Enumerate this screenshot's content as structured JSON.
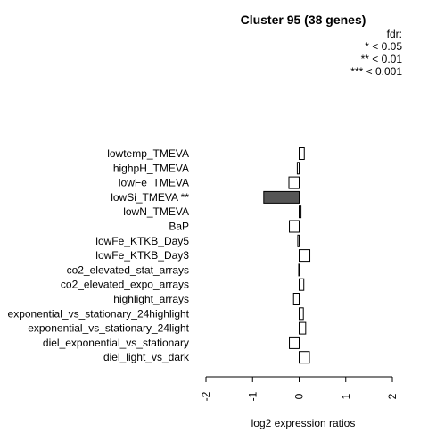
{
  "chart_data": {
    "type": "bar",
    "orientation": "horizontal",
    "title": "Cluster 95 (38 genes)",
    "legend": {
      "heading": "fdr:",
      "entries": [
        "* < 0.05",
        "** < 0.01",
        "*** < 0.001"
      ],
      "placement": "top-right"
    },
    "xlabel": "log2 expression ratios",
    "xlim": [
      -2,
      2
    ],
    "xticks": [
      "-2",
      "-1",
      "0",
      "1",
      "2"
    ],
    "categories": [
      "lowtemp_TMEVA",
      "highpH_TMEVA",
      "lowFe_TMEVA",
      "lowSi_TMEVA **",
      "lowN_TMEVA",
      "BaP",
      "lowFe_KTKB_Day5",
      "lowFe_KTKB_Day3",
      "co2_elevated_stat_arrays",
      "co2_elevated_expo_arrays",
      "highlight_arrays",
      "exponential_vs_stationary_24highlight",
      "exponential_vs_stationary_24light",
      "diel_exponential_vs_stationary",
      "diel_light_vs_dark"
    ],
    "values": [
      0.11,
      -0.04,
      -0.22,
      -0.76,
      0.04,
      -0.21,
      -0.03,
      0.23,
      -0.01,
      0.1,
      -0.12,
      0.09,
      0.14,
      -0.21,
      0.22
    ],
    "highlight": [
      false,
      false,
      false,
      true,
      false,
      false,
      false,
      false,
      false,
      false,
      false,
      false,
      false,
      false,
      false
    ],
    "colors": {
      "bar": "#ffffff",
      "bar_highlight": "#555555",
      "stroke": "#000000"
    }
  }
}
